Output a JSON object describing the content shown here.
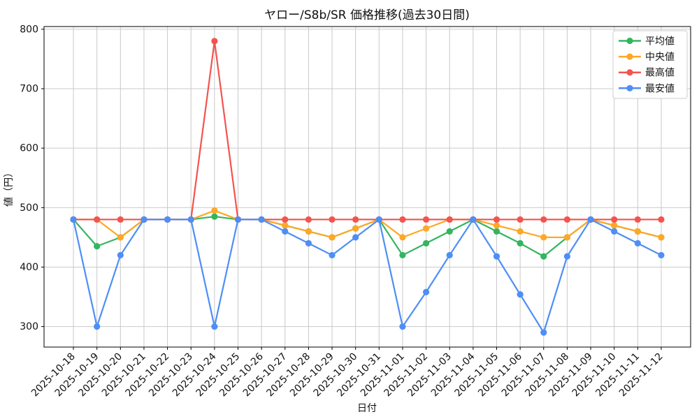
{
  "title": "ヤロー/S8b/SR 価格推移(過去30日間)",
  "chart_data": {
    "type": "line",
    "title": "ヤロー/S8b/SR 価格推移(過去30日間)",
    "xlabel": "日付",
    "ylabel": "値（円）",
    "ylim": [
      265.5,
      804.5
    ],
    "yticks": [
      300,
      400,
      500,
      600,
      700,
      800
    ],
    "grid": true,
    "grid_color": "#c9c9c9",
    "axis_color": "#000000",
    "background": "#ffffff",
    "legend_position": "upper right",
    "categories": [
      "2025-10-18",
      "2025-10-19",
      "2025-10-20",
      "2025-10-21",
      "2025-10-22",
      "2025-10-23",
      "2025-10-24",
      "2025-10-25",
      "2025-10-26",
      "2025-10-27",
      "2025-10-28",
      "2025-10-29",
      "2025-10-30",
      "2025-10-31",
      "2025-11-01",
      "2025-11-02",
      "2025-11-03",
      "2025-11-04",
      "2025-11-05",
      "2025-11-06",
      "2025-11-07",
      "2025-11-08",
      "2025-11-09",
      "2025-11-10",
      "2025-11-11",
      "2025-11-12"
    ],
    "series": [
      {
        "name": "平均値",
        "color": "#33b560",
        "values": [
          480,
          435,
          450,
          480,
          480,
          480,
          485,
          480,
          480,
          470,
          460,
          450,
          465,
          480,
          420,
          440,
          460,
          480,
          460,
          440,
          418,
          450,
          480,
          470,
          460,
          450
        ]
      },
      {
        "name": "中央値",
        "color": "#ffa726",
        "values": [
          480,
          480,
          450,
          480,
          480,
          480,
          495,
          480,
          480,
          470,
          460,
          450,
          465,
          480,
          450,
          465,
          480,
          480,
          470,
          460,
          450,
          450,
          480,
          470,
          460,
          450
        ]
      },
      {
        "name": "最高値",
        "color": "#f4534e",
        "values": [
          480,
          480,
          480,
          480,
          480,
          480,
          780,
          480,
          480,
          480,
          480,
          480,
          480,
          480,
          480,
          480,
          480,
          480,
          480,
          480,
          480,
          480,
          480,
          480,
          480,
          480
        ]
      },
      {
        "name": "最安値",
        "color": "#4e8ef7",
        "values": [
          480,
          300,
          420,
          480,
          480,
          480,
          300,
          480,
          480,
          460,
          440,
          420,
          450,
          480,
          300,
          358,
          420,
          480,
          418,
          354,
          290,
          418,
          480,
          460,
          440,
          420
        ]
      }
    ]
  }
}
